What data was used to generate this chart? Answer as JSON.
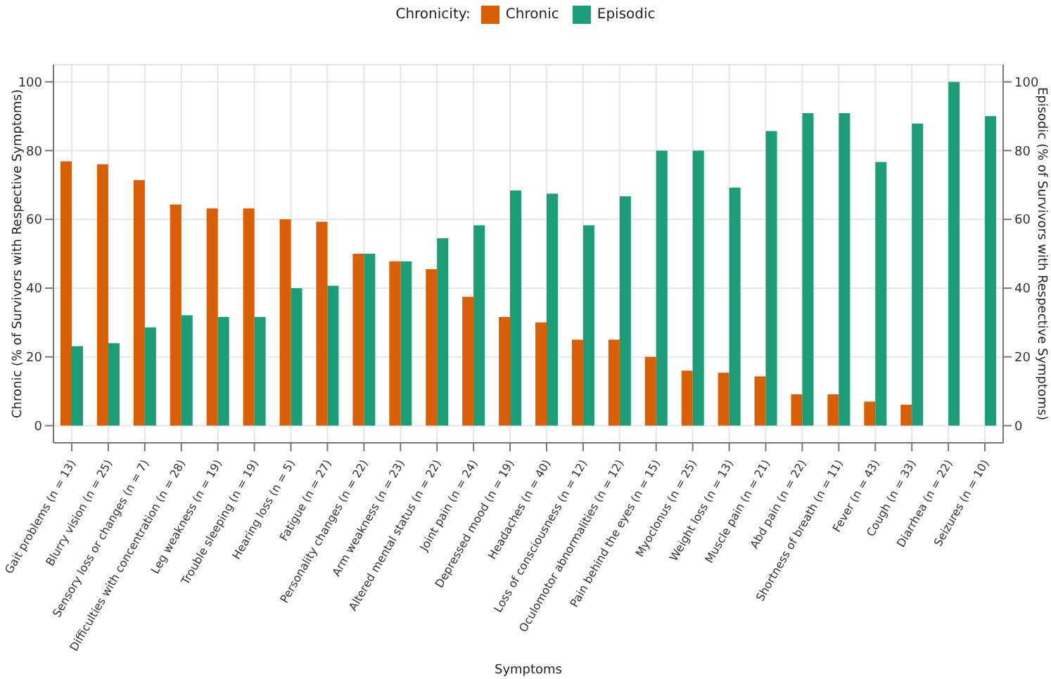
{
  "chart_data": {
    "type": "bar",
    "xlabel": "Symptoms",
    "ylabel": "Chronic (% of Survivors with Respective Symptoms)",
    "y2label": "Episodic (% of Survivors with Respective Symptoms)",
    "legend_title": "Chronicity:",
    "categories": [
      "Gait problems (n = 13)",
      "Blurry vision (n = 25)",
      "Sensory loss or changes (n = 7)",
      "Difficulties with concentration (n = 28)",
      "Leg weakness (n = 19)",
      "Trouble sleeping (n = 19)",
      "Hearing loss (n = 5)",
      "Fatigue (n = 27)",
      "Personality changes (n = 22)",
      "Arm weakness (n = 23)",
      "Altered mental status (n = 22)",
      "Joint pain (n = 24)",
      "Depressed mood (n = 19)",
      "Headaches (n = 40)",
      "Loss of consciousness (n = 12)",
      "Oculomotor abnormalities (n = 12)",
      "Pain behind the eyes (n = 15)",
      "Myoclonus (n = 25)",
      "Weight loss (n = 13)",
      "Muscle pain (n = 21)",
      "Abd pain (n = 22)",
      "Shortness of breath (n = 11)",
      "Fever (n = 43)",
      "Cough (n = 33)",
      "Diarrhea (n = 22)",
      "Seizures (n = 10)"
    ],
    "series": [
      {
        "name": "Chronic",
        "color": "#d95f02",
        "values": [
          76.9,
          76,
          71.4,
          64.3,
          63.2,
          63.2,
          60,
          59.3,
          50,
          47.8,
          45.5,
          37.5,
          31.6,
          30,
          25,
          25,
          20,
          16,
          15.4,
          14.3,
          9.1,
          9.1,
          7,
          6.1,
          0,
          0
        ]
      },
      {
        "name": "Episodic",
        "color": "#1b9e77",
        "axis": "y2",
        "values": [
          23.1,
          24,
          28.6,
          32.1,
          31.6,
          31.6,
          40,
          40.7,
          50,
          47.8,
          54.5,
          58.3,
          68.4,
          67.5,
          58.3,
          66.7,
          80,
          80,
          69.2,
          85.7,
          90.9,
          90.9,
          76.7,
          87.9,
          100,
          90
        ]
      }
    ],
    "ylim": [
      -5,
      105
    ],
    "yticks": [
      0,
      20,
      40,
      60,
      80,
      100
    ],
    "y2lim": [
      -5,
      105
    ],
    "y2ticks": [
      0,
      20,
      40,
      60,
      80,
      100
    ],
    "grid": true,
    "legend": "top"
  }
}
